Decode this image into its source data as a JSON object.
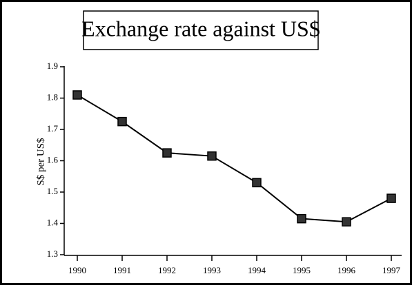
{
  "chart_data": {
    "type": "line",
    "title": "Exchange rate against US$",
    "y_label": "S$ per US$",
    "categories": [
      "1990",
      "1991",
      "1992",
      "1993",
      "1994",
      "1995",
      "1996",
      "1997"
    ],
    "values": [
      1.81,
      1.725,
      1.625,
      1.615,
      1.53,
      1.415,
      1.405,
      1.48
    ],
    "color": "#000000",
    "ylim": [
      1.3,
      1.9
    ],
    "yticks": [
      1.3,
      1.4,
      1.5,
      1.6,
      1.7,
      1.8,
      1.9
    ]
  }
}
